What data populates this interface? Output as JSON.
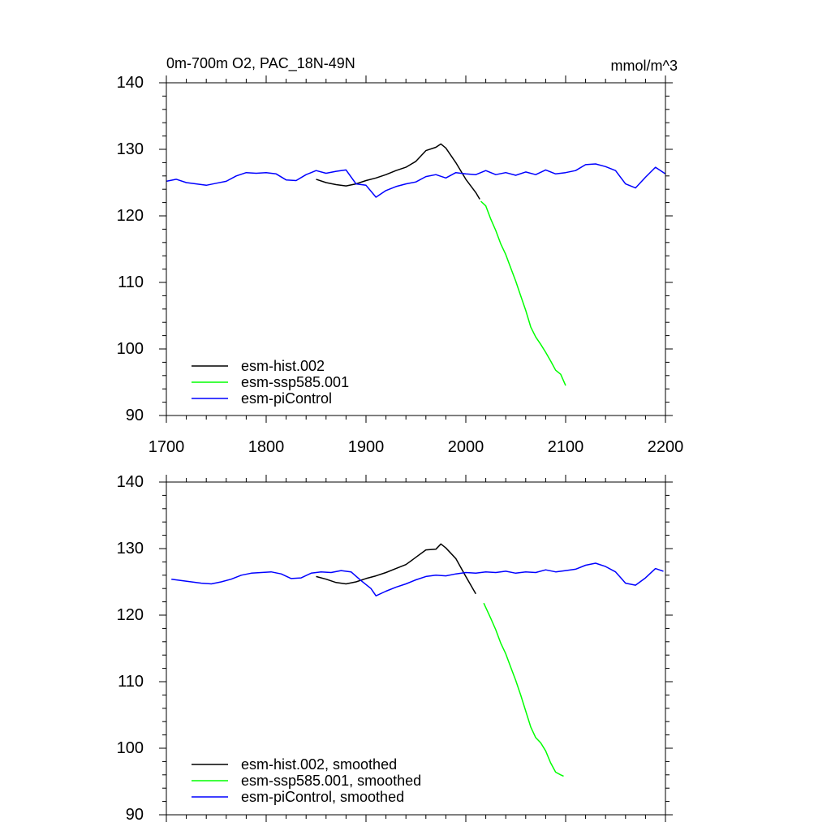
{
  "chart_data": [
    {
      "type": "line",
      "title": "0m-700m O2, PAC_18N-49N",
      "units": "mmol/m^3",
      "xlim": [
        1700,
        2200
      ],
      "ylim": [
        90,
        140
      ],
      "x_ticks": [
        "1700",
        "1800",
        "1900",
        "2000",
        "2100",
        "2200"
      ],
      "y_ticks": [
        "90",
        "100",
        "110",
        "120",
        "130",
        "140"
      ],
      "legend_position": "bottom-left",
      "series": [
        {
          "name": "esm-hist.002",
          "color": "#000000",
          "x": [
            1850,
            1860,
            1870,
            1880,
            1890,
            1900,
            1910,
            1920,
            1930,
            1940,
            1950,
            1960,
            1970,
            1975,
            1980,
            1990,
            2000,
            2010,
            2014
          ],
          "y": [
            125.5,
            125.0,
            124.7,
            124.5,
            124.8,
            125.3,
            125.7,
            126.2,
            126.8,
            127.3,
            128.2,
            129.8,
            130.3,
            130.8,
            130.2,
            128.0,
            125.5,
            123.5,
            122.5
          ]
        },
        {
          "name": "esm-ssp585.001",
          "color": "#00ff00",
          "x": [
            2015,
            2020,
            2025,
            2030,
            2035,
            2040,
            2045,
            2050,
            2055,
            2060,
            2065,
            2070,
            2075,
            2080,
            2085,
            2090,
            2095,
            2100
          ],
          "y": [
            122.2,
            121.5,
            119.5,
            117.8,
            115.8,
            114.2,
            112.2,
            110.2,
            108.0,
            105.8,
            103.3,
            101.8,
            100.7,
            99.5,
            98.2,
            96.8,
            96.2,
            94.5
          ]
        },
        {
          "name": "esm-piControl",
          "color": "#0000ff",
          "x": [
            1700,
            1710,
            1720,
            1730,
            1740,
            1750,
            1760,
            1770,
            1780,
            1790,
            1800,
            1810,
            1820,
            1830,
            1840,
            1850,
            1860,
            1870,
            1880,
            1890,
            1900,
            1910,
            1920,
            1930,
            1940,
            1950,
            1960,
            1970,
            1980,
            1990,
            2000,
            2010,
            2020,
            2030,
            2040,
            2050,
            2060,
            2070,
            2080,
            2090,
            2100,
            2110,
            2120,
            2130,
            2140,
            2150,
            2160,
            2170,
            2180,
            2190,
            2200
          ],
          "y": [
            125.2,
            125.5,
            125.0,
            124.8,
            124.6,
            124.9,
            125.2,
            126.0,
            126.5,
            126.4,
            126.5,
            126.3,
            125.4,
            125.3,
            126.2,
            126.8,
            126.4,
            126.7,
            126.9,
            124.8,
            124.6,
            122.8,
            123.8,
            124.4,
            124.8,
            125.1,
            125.9,
            126.2,
            125.7,
            126.5,
            126.3,
            126.2,
            126.8,
            126.2,
            126.5,
            126.1,
            126.6,
            126.2,
            126.9,
            126.3,
            126.5,
            126.8,
            127.7,
            127.8,
            127.4,
            126.8,
            124.8,
            124.2,
            125.8,
            127.3,
            126.3
          ]
        }
      ]
    },
    {
      "type": "line",
      "title": "",
      "xlim": [
        1700,
        2200
      ],
      "ylim": [
        90,
        140
      ],
      "y_ticks": [
        "90",
        "100",
        "110",
        "120",
        "130",
        "140"
      ],
      "legend_position": "bottom-left",
      "series": [
        {
          "name": "esm-hist.002, smoothed",
          "color": "#000000",
          "x": [
            1850,
            1860,
            1870,
            1880,
            1890,
            1900,
            1910,
            1920,
            1930,
            1940,
            1950,
            1960,
            1970,
            1975,
            1980,
            1990,
            2000,
            2010
          ],
          "y": [
            125.8,
            125.4,
            124.9,
            124.7,
            125.0,
            125.5,
            125.9,
            126.4,
            127.0,
            127.6,
            128.7,
            129.8,
            129.9,
            130.7,
            130.1,
            128.5,
            125.8,
            123.2
          ]
        },
        {
          "name": "esm-ssp585.001, smoothed",
          "color": "#00ff00",
          "x": [
            2018,
            2025,
            2030,
            2035,
            2040,
            2045,
            2050,
            2055,
            2060,
            2065,
            2070,
            2075,
            2080,
            2085,
            2090,
            2095,
            2098
          ],
          "y": [
            121.8,
            119.5,
            117.8,
            115.8,
            114.2,
            112.2,
            110.2,
            108.0,
            105.6,
            103.2,
            101.6,
            100.8,
            99.6,
            97.8,
            96.4,
            96.0,
            95.8
          ]
        },
        {
          "name": "esm-piControl, smoothed",
          "color": "#0000ff",
          "x": [
            1705,
            1715,
            1725,
            1735,
            1745,
            1755,
            1765,
            1775,
            1785,
            1795,
            1805,
            1815,
            1825,
            1835,
            1845,
            1855,
            1865,
            1875,
            1885,
            1895,
            1905,
            1910,
            1920,
            1930,
            1940,
            1950,
            1960,
            1970,
            1980,
            1990,
            2000,
            2010,
            2020,
            2030,
            2040,
            2050,
            2060,
            2070,
            2080,
            2090,
            2100,
            2110,
            2120,
            2130,
            2140,
            2150,
            2160,
            2170,
            2180,
            2190,
            2198
          ],
          "y": [
            125.4,
            125.2,
            125.0,
            124.8,
            124.7,
            125.0,
            125.4,
            126.0,
            126.3,
            126.4,
            126.5,
            126.2,
            125.5,
            125.6,
            126.3,
            126.5,
            126.4,
            126.7,
            126.5,
            125.2,
            124.0,
            122.9,
            123.6,
            124.2,
            124.7,
            125.3,
            125.8,
            126.0,
            125.9,
            126.2,
            126.4,
            126.3,
            126.5,
            126.4,
            126.6,
            126.3,
            126.5,
            126.4,
            126.8,
            126.5,
            126.7,
            126.9,
            127.5,
            127.8,
            127.3,
            126.5,
            124.8,
            124.5,
            125.6,
            127.0,
            126.6
          ]
        }
      ]
    }
  ]
}
